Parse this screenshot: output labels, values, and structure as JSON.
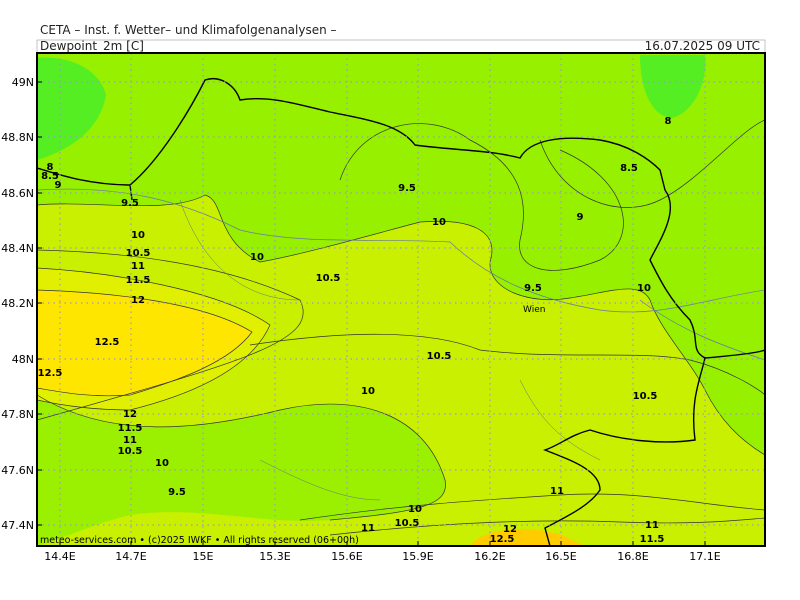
{
  "header": {
    "title": "CETA – Inst. f. Wetter– und Klimafolgenanalysen –",
    "variable": "Dewpoint_2m [C]",
    "valid_time": "16.07.2025 09 UTC"
  },
  "map": {
    "latitude_labels": [
      "49N",
      "48.8N",
      "48.6N",
      "48.4N",
      "48.2N",
      "48N",
      "47.8N",
      "47.6N",
      "47.4N"
    ],
    "longitude_labels": [
      "14.4E",
      "14.7E",
      "15E",
      "15.3E",
      "15.6E",
      "15.9E",
      "16.2E",
      "16.5E",
      "16.8E",
      "17.1E"
    ],
    "contour_labels": [
      "8",
      "8.5",
      "9",
      "9.5",
      "10",
      "10.5",
      "11",
      "11.5",
      "12",
      "12.5",
      "12.5",
      "12",
      "11.5",
      "11",
      "10.5",
      "10",
      "9.5",
      "9.5",
      "10",
      "10",
      "10.5",
      "9.5",
      "10",
      "9",
      "8.5",
      "8",
      "10.5",
      "10",
      "10.5",
      "10",
      "10.5",
      "11",
      "11",
      "12",
      "12.5",
      "11",
      "11.5"
    ],
    "city_label": "Wien"
  },
  "footer": {
    "credit": "meteo-services.com • (c)2025 IWKF • All rights reserved (06+00h)"
  }
}
